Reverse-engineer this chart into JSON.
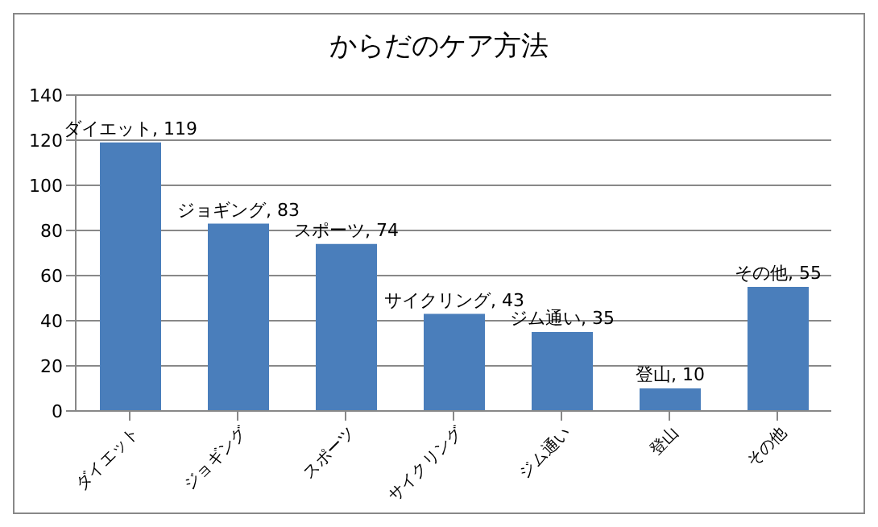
{
  "chart_data": {
    "type": "bar",
    "title": "からだのケア方法",
    "categories": [
      "ダイエット",
      "ジョギング",
      "スポーツ",
      "サイクリング",
      "ジム通い",
      "登山",
      "その他"
    ],
    "values": [
      119,
      83,
      74,
      43,
      35,
      10,
      55
    ],
    "value_labels": [
      "ダイエット, 119",
      "ジョギング, 83",
      "スポーツ, 74",
      "サイクリング, 43",
      "ジム通い, 35",
      "登山, 10",
      "その他, 55"
    ],
    "color": "#4a7ebb",
    "ylim": [
      0,
      140
    ],
    "yticks": [
      0,
      20,
      40,
      60,
      80,
      100,
      120,
      140
    ],
    "grid": "y"
  }
}
